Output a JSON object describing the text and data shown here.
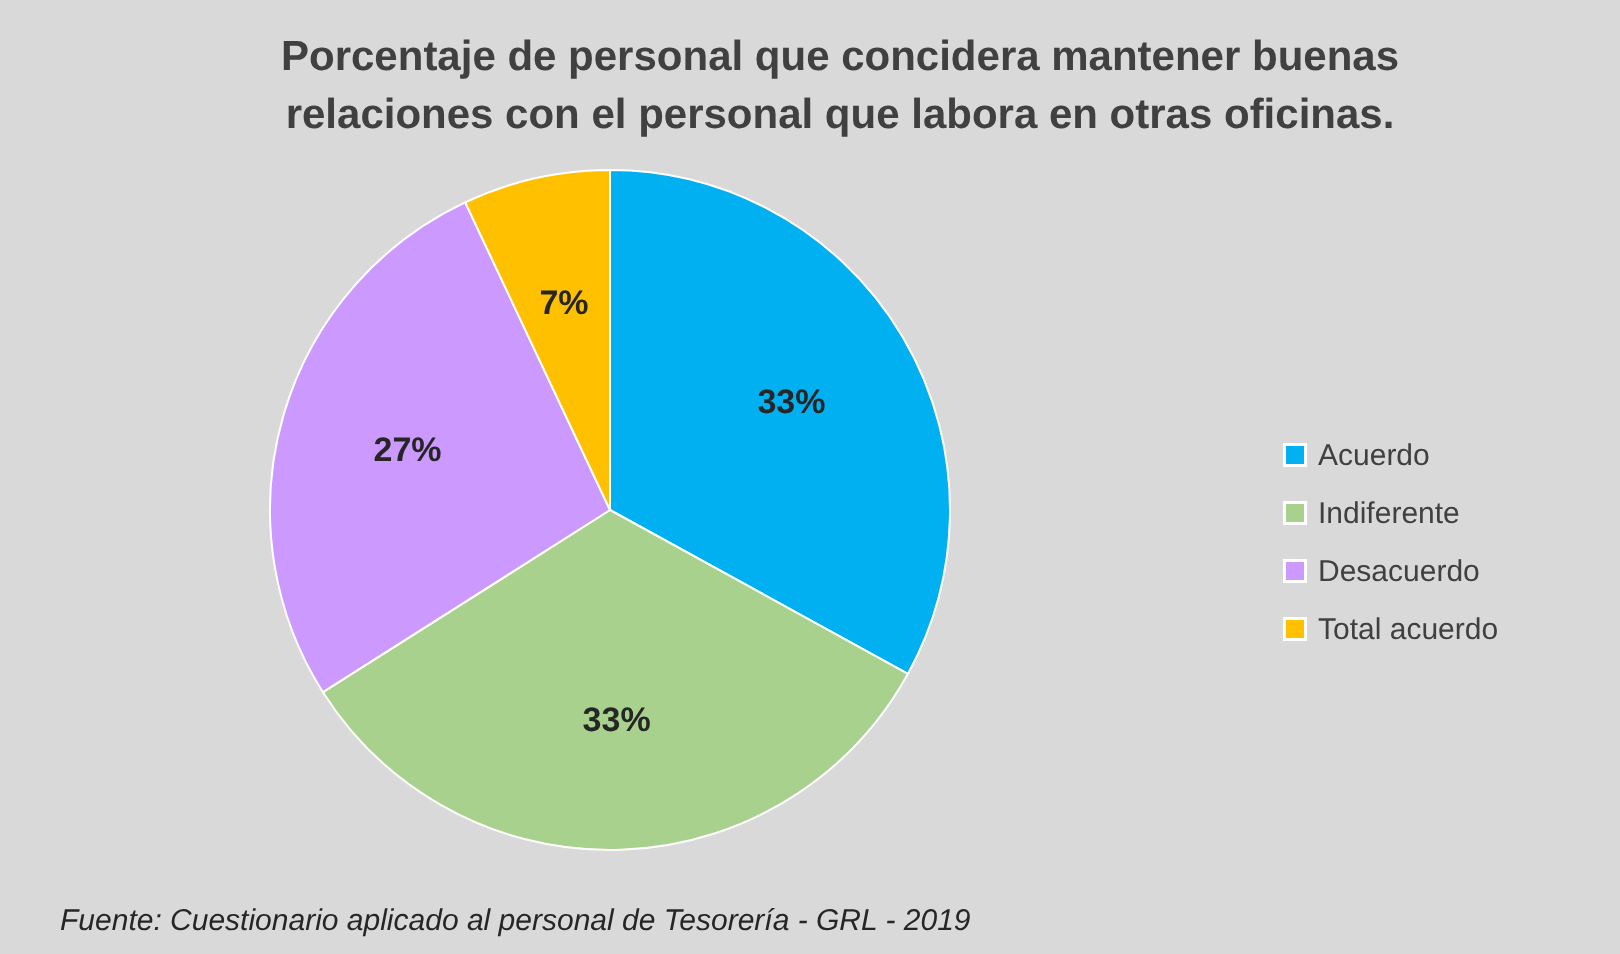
{
  "chart_data": {
    "type": "pie",
    "title": [
      "Porcentaje de personal que concidera mantener buenas",
      "relaciones con el personal que labora en otras oficinas."
    ],
    "categories": [
      "Acuerdo",
      "Indiferente",
      "Desacuerdo",
      "Total acuerdo"
    ],
    "values": [
      33,
      33,
      27,
      7
    ],
    "colors": [
      "#00b0f0",
      "#a9d18e",
      "#cc99ff",
      "#ffc000"
    ],
    "value_labels": [
      "33%",
      "33%",
      "27%",
      "7%"
    ],
    "legend": "right",
    "annotations": [
      "Fuente: Cuestionario aplicado al personal de Tesorería - GRL - 2019"
    ]
  }
}
